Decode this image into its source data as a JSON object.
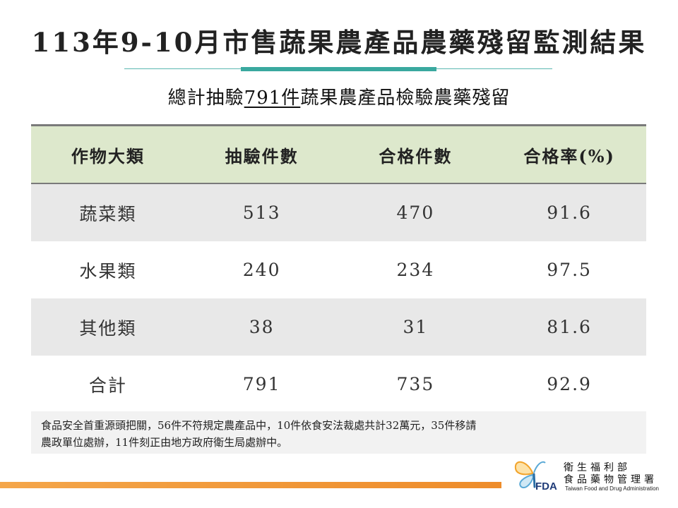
{
  "slide": {
    "title": "113年9-10月市售蔬果農產品農藥殘留監測結果",
    "subtitle_prefix": "總計抽驗",
    "subtitle_highlight": "791件",
    "subtitle_suffix": "蔬果農產品檢驗農藥殘留",
    "accent_color": "#3aa99f",
    "header_color": "#dde8cc",
    "footer_bar_color": "#ee8c2a"
  },
  "table": {
    "headers": [
      "作物大類",
      "抽驗件數",
      "合格件數",
      "合格率(%)"
    ],
    "rows": [
      [
        "蔬菜類",
        "513",
        "470",
        "91.6"
      ],
      [
        "水果類",
        "240",
        "234",
        "97.5"
      ],
      [
        "其他類",
        "38",
        "31",
        "81.6"
      ],
      [
        "合計",
        "791",
        "735",
        "92.9"
      ]
    ]
  },
  "note": {
    "line1": "食品安全首重源頭把關，56件不符規定農產品中，10件依食安法裁處共計32萬元，35件移請",
    "line2": "農政單位處辦，11件刻正由地方政府衛生局處辦中。"
  },
  "footer": {
    "logo_text": "FDA",
    "logo_icon": "butterfly-logo-icon",
    "org_line1": "衛生福利部",
    "org_line2": "食品藥物管理署",
    "org_en": "Taiwan Food and Drug Administration"
  }
}
